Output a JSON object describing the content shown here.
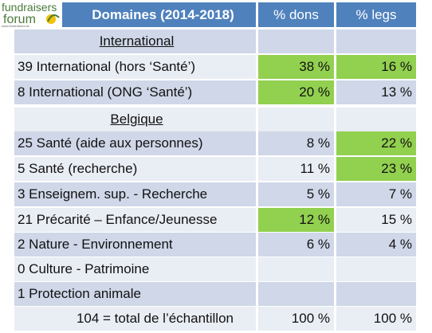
{
  "logo": {
    "line1": "fundraisers",
    "line2": "forum",
    "url": "www.fundraisers.be"
  },
  "colors": {
    "header": "#4f81bd",
    "row_dark": "#cfd7e8",
    "row_light": "#e9edf4",
    "highlight": "#92d050"
  },
  "table": {
    "headers": [
      "Domaines (2014-2018)",
      "% dons",
      "% legs"
    ],
    "rows": [
      {
        "type": "section",
        "label": "International",
        "dons": "",
        "legs": ""
      },
      {
        "type": "data",
        "label": "39 International (hors ‘Santé’)",
        "dons": "38 %",
        "legs": "16 %",
        "hl_dons": true,
        "hl_legs": true
      },
      {
        "type": "data",
        "label": "8 International (ONG ‘Santé’)",
        "dons": "20 %",
        "legs": "13 %",
        "hl_dons": true,
        "hl_legs": false
      },
      {
        "type": "section",
        "label": "Belgique",
        "dons": "",
        "legs": ""
      },
      {
        "type": "data",
        "label": "25 Santé (aide aux personnes)",
        "dons": "8 %",
        "legs": "22 %",
        "hl_dons": false,
        "hl_legs": true
      },
      {
        "type": "data",
        "label": "5 Santé (recherche)",
        "dons": "11 %",
        "legs": "23 %",
        "hl_dons": false,
        "hl_legs": true
      },
      {
        "type": "data",
        "label": "3 Enseignem. sup. - Recherche",
        "dons": "5 %",
        "legs": "7 %",
        "hl_dons": false,
        "hl_legs": false
      },
      {
        "type": "data",
        "label": "21 Précarité – Enfance/Jeunesse",
        "dons": "12 %",
        "legs": "15 %",
        "hl_dons": true,
        "hl_legs": false
      },
      {
        "type": "data",
        "label": "2 Nature - Environnement",
        "dons": "6 %",
        "legs": "4 %",
        "hl_dons": false,
        "hl_legs": false
      },
      {
        "type": "data",
        "label": "0 Culture - Patrimoine",
        "dons": "",
        "legs": "",
        "hl_dons": false,
        "hl_legs": false
      },
      {
        "type": "data",
        "label": "1 Protection animale",
        "dons": "",
        "legs": "",
        "hl_dons": false,
        "hl_legs": false
      },
      {
        "type": "total",
        "label": "104 = total de l’échantillon",
        "dons": "100 %",
        "legs": "100 %",
        "hl_dons": false,
        "hl_legs": false
      }
    ]
  }
}
